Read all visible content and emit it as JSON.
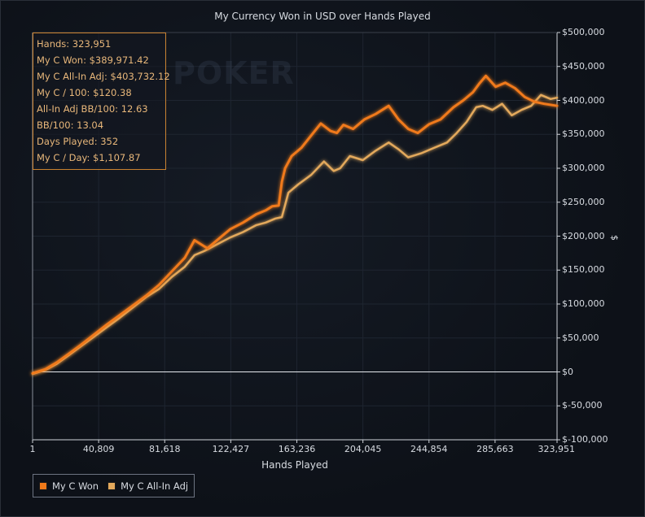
{
  "chart_data": {
    "type": "line",
    "title": "My Currency Won in USD over Hands Played",
    "xlabel": "Hands Played",
    "ylabel": "$",
    "xlim": [
      1,
      323951
    ],
    "ylim": [
      -100000,
      500000
    ],
    "x_ticks": [
      "1",
      "40,809",
      "81,618",
      "122,427",
      "163,236",
      "204,045",
      "244,854",
      "285,663",
      "323,951"
    ],
    "x_tick_values": [
      1,
      40809,
      81618,
      122427,
      163236,
      204045,
      244854,
      285663,
      323951
    ],
    "y_ticks": [
      "$500,000",
      "$450,000",
      "$400,000",
      "$350,000",
      "$300,000",
      "$250,000",
      "$200,000",
      "$150,000",
      "$100,000",
      "$50,000",
      "$0",
      "$-50,000",
      "$-100,000"
    ],
    "y_tick_values": [
      500000,
      450000,
      400000,
      350000,
      300000,
      250000,
      200000,
      150000,
      100000,
      50000,
      0,
      -50000,
      -100000
    ],
    "legend_position": "bottom-left",
    "grid": true,
    "series": [
      {
        "name": "My C Won",
        "color": "#f07a1a",
        "x": [
          1,
          8000,
          15000,
          22000,
          30000,
          38000,
          46000,
          54000,
          62000,
          70000,
          78000,
          86000,
          94000,
          100000,
          104000,
          108000,
          115000,
          122000,
          130000,
          138000,
          144000,
          148000,
          152000,
          154000,
          156000,
          160000,
          166000,
          172000,
          178000,
          184000,
          188000,
          192000,
          198000,
          205000,
          212000,
          220000,
          226000,
          232000,
          238000,
          245000,
          252000,
          260000,
          266000,
          272000,
          276000,
          280000,
          286000,
          292000,
          298000,
          304000,
          310000,
          316000,
          323951
        ],
        "y": [
          -2000,
          4000,
          14000,
          26000,
          40000,
          55000,
          70000,
          84000,
          98000,
          112000,
          128000,
          148000,
          168000,
          194000,
          188000,
          182000,
          196000,
          210000,
          220000,
          232000,
          238000,
          244000,
          245000,
          280000,
          300000,
          318000,
          330000,
          348000,
          366000,
          355000,
          352000,
          364000,
          358000,
          372000,
          380000,
          392000,
          372000,
          358000,
          352000,
          365000,
          372000,
          390000,
          400000,
          412000,
          425000,
          436000,
          420000,
          426000,
          418000,
          405000,
          398000,
          395000,
          392000
        ]
      },
      {
        "name": "My C All-In Adj",
        "color": "#e3a95c",
        "x": [
          1,
          8000,
          15000,
          22000,
          30000,
          38000,
          46000,
          54000,
          62000,
          70000,
          78000,
          86000,
          94000,
          100000,
          106000,
          114000,
          122000,
          130000,
          138000,
          144000,
          150000,
          154000,
          158000,
          164000,
          172000,
          180000,
          186000,
          190000,
          196000,
          204000,
          212000,
          220000,
          226000,
          232000,
          240000,
          248000,
          256000,
          262000,
          268000,
          274000,
          278000,
          284000,
          290000,
          296000,
          302000,
          308000,
          314000,
          320000,
          323951
        ],
        "y": [
          -3000,
          3000,
          12000,
          24000,
          38000,
          52000,
          66000,
          80000,
          95000,
          110000,
          122000,
          140000,
          155000,
          172000,
          178000,
          188000,
          198000,
          206000,
          216000,
          220000,
          226000,
          228000,
          264000,
          276000,
          290000,
          310000,
          296000,
          300000,
          318000,
          312000,
          326000,
          338000,
          328000,
          316000,
          322000,
          330000,
          338000,
          352000,
          368000,
          390000,
          392000,
          386000,
          395000,
          378000,
          386000,
          392000,
          408000,
          402000,
          404000
        ]
      }
    ]
  },
  "stats": {
    "hands": "Hands: 323,951",
    "won": "My C Won: $389,971.42",
    "allin": "My C All-In Adj: $403,732.12",
    "per100": "My C / 100: $120.38",
    "allin_bb100": "All-In Adj BB/100: 12.63",
    "bb100": "BB/100: 13.04",
    "days": "Days Played: 352",
    "per_day": "My C / Day: $1,107.87"
  },
  "watermark": "POKER",
  "colors": {
    "background": "#0f131b",
    "grid": "#1e2530",
    "axis": "#cfd3da",
    "accent": "#c9812f"
  }
}
